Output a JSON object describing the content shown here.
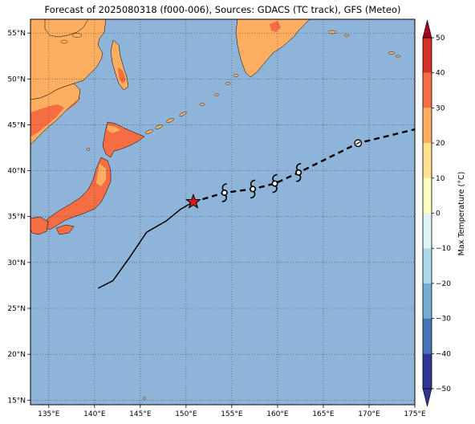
{
  "title": "Forecast of 2025080318 (f000-006), Sources: GDACS (TC track), GFS (Meteo)",
  "map": {
    "lon_range": [
      133,
      175
    ],
    "lat_range": [
      14.5,
      56.5
    ],
    "lon_ticks": [
      135,
      140,
      145,
      150,
      155,
      160,
      165,
      170,
      175
    ],
    "lon_labels": [
      "135°E",
      "140°E",
      "145°E",
      "150°E",
      "155°E",
      "160°E",
      "165°E",
      "170°E",
      "175°E"
    ],
    "lat_ticks": [
      15,
      20,
      25,
      30,
      35,
      40,
      45,
      50,
      55
    ],
    "lat_labels": [
      "15°N",
      "20°N",
      "25°N",
      "30°N",
      "35°N",
      "40°N",
      "45°N",
      "50°N",
      "55°N"
    ],
    "ocean_color": "#8fb4d9",
    "grid": true,
    "gridline_style": "dotted"
  },
  "track": {
    "past": [
      [
        140.4,
        27.2
      ],
      [
        142.0,
        28.0
      ],
      [
        143.8,
        30.5
      ],
      [
        145.7,
        33.3
      ],
      [
        147.8,
        34.5
      ],
      [
        149.4,
        35.8
      ],
      [
        150.8,
        36.6
      ]
    ],
    "current": [
      150.8,
      36.6
    ],
    "forecast": [
      [
        150.8,
        36.6
      ],
      [
        154.2,
        37.6
      ],
      [
        157.3,
        38.0
      ],
      [
        159.7,
        38.6
      ],
      [
        162.3,
        39.8
      ],
      [
        168.8,
        43.0
      ],
      [
        175,
        44.5
      ]
    ],
    "cyclone_symbols": [
      [
        154.2,
        37.6
      ],
      [
        157.3,
        38.0
      ],
      [
        159.7,
        38.6
      ],
      [
        162.3,
        39.8
      ]
    ],
    "low_symbol": [
      168.8,
      43.0
    ],
    "current_marker_color": "#d7191c"
  },
  "colorbar": {
    "label": "Max Temperature (°C)",
    "ticks": [
      50,
      40,
      30,
      20,
      10,
      0,
      -10,
      -20,
      -30,
      -40,
      -50
    ],
    "tick_labels": [
      "50",
      "40",
      "30",
      "20",
      "10",
      "0",
      "−10",
      "−20",
      "−30",
      "−40",
      "−50"
    ],
    "colors": [
      "#313695",
      "#4575b4",
      "#74add1",
      "#abd9e9",
      "#e0f3f8",
      "#ffffbf",
      "#fee090",
      "#fdae61",
      "#f46d43",
      "#d73027",
      "#a50026"
    ]
  },
  "land_colors": {
    "temp_15_20": "#fee090",
    "temp_20_25": "#fdae61",
    "temp_25_30": "#f46d43",
    "temp_30_35": "#d73027"
  }
}
